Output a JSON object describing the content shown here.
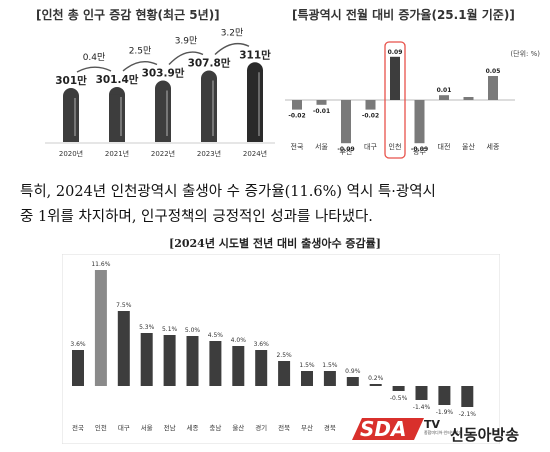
{
  "header": {
    "left_title": "[인천 총 인구 증감 현황(최근 5년)]",
    "right_title": "[특광역시 전월 대비 증가율(25.1월 기준)]"
  },
  "paragraph": {
    "line1": "특히, 2024년 인천광역시 출생아 수 증가율(11.6%) 역시 특·광역시",
    "line2": "중 1위를 차지하며, 인구정책의 긍정적인 성과를 나타냈다."
  },
  "logo": {
    "brand": "SDA",
    "tv": "TV",
    "name": "신동아방송",
    "small": "종합미디어·인터넷방송"
  },
  "colors": {
    "dark_bar": "#3d3d3d",
    "mid_bar": "#7a7a7a",
    "accent": "#d9302c",
    "highlight_box": "#e8524a"
  },
  "chart_data": [
    {
      "type": "bar",
      "title": "[인천 총 인구 증감 현황(최근 5년)]",
      "categories": [
        "2020년",
        "2021년",
        "2022년",
        "2023년",
        "2024년"
      ],
      "values": [
        301,
        301.4,
        303.9,
        307.8,
        311
      ],
      "value_labels": [
        "301만",
        "301.4만",
        "303.9만",
        "307.8만",
        "311만"
      ],
      "increments": [
        "0.4만",
        "2.5만",
        "3.9만",
        "3.2만"
      ],
      "ylim": [
        280,
        320
      ]
    },
    {
      "type": "bar",
      "title": "[특광역시 전월 대비 증가율(25.1월 기준)]",
      "unit_label": "(단위: %)",
      "categories": [
        "전국",
        "서울",
        "부산",
        "대구",
        "인천",
        "광주",
        "대전",
        "울산",
        "세종"
      ],
      "values": [
        -0.02,
        -0.01,
        -0.09,
        -0.02,
        0.09,
        -0.09,
        0.01,
        0.0,
        0.05
      ],
      "value_labels": [
        "-0.02",
        "-0.01",
        "-0.09",
        "-0.02",
        "0.09",
        "-0.09",
        "0.01",
        "",
        "0.05"
      ],
      "highlight": "인천",
      "ylim": [
        -0.1,
        0.1
      ]
    },
    {
      "type": "bar",
      "title": "[2024년 시도별 전년 대비 출생아수 증감률]",
      "categories": [
        "전국",
        "인천",
        "대구",
        "서울",
        "전남",
        "세종",
        "충남",
        "울산",
        "경기",
        "전북",
        "부산",
        "경북",
        "",
        "",
        "",
        "",
        "",
        ""
      ],
      "values": [
        3.6,
        11.6,
        7.5,
        5.3,
        5.1,
        5.0,
        4.5,
        4.0,
        3.6,
        2.5,
        1.5,
        1.5,
        0.9,
        0.2,
        -0.5,
        -1.4,
        -1.9,
        -2.1
      ],
      "value_labels": [
        "3.6%",
        "11.6%",
        "7.5%",
        "5.3%",
        "5.1%",
        "5.0%",
        "4.5%",
        "4.0%",
        "3.6%",
        "2.5%",
        "1.5%",
        "1.5%",
        "0.9%",
        "0.2%",
        "-0.5%",
        "-1.4%",
        "-1.9%",
        "-2.1%"
      ],
      "highlight": "인천",
      "ylim": [
        -3,
        12
      ]
    }
  ]
}
